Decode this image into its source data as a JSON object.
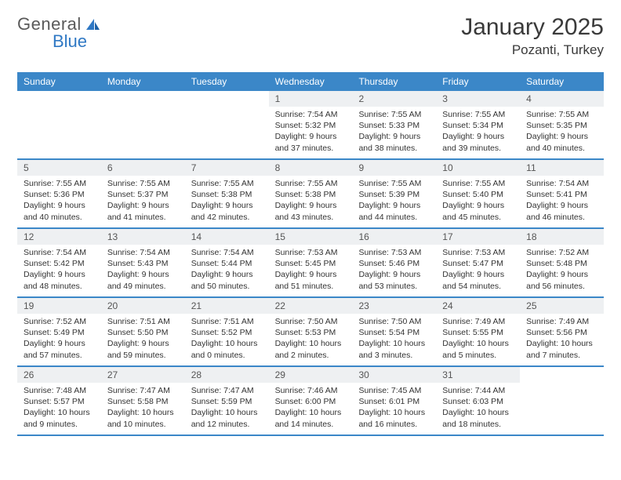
{
  "logo": {
    "word1": "General",
    "word2": "Blue"
  },
  "title": "January 2025",
  "location": "Pozanti, Turkey",
  "colors": {
    "header_bar": "#3b87c8",
    "day_num_bg": "#eef0f2",
    "week_border": "#3b87c8",
    "logo_gray": "#5a5a5a",
    "logo_blue": "#2f78c4",
    "text": "#333333",
    "background": "#ffffff"
  },
  "dow": [
    "Sunday",
    "Monday",
    "Tuesday",
    "Wednesday",
    "Thursday",
    "Friday",
    "Saturday"
  ],
  "weeks": [
    [
      {
        "n": "",
        "sr": "",
        "ss": "",
        "dl": ""
      },
      {
        "n": "",
        "sr": "",
        "ss": "",
        "dl": ""
      },
      {
        "n": "",
        "sr": "",
        "ss": "",
        "dl": ""
      },
      {
        "n": "1",
        "sr": "Sunrise: 7:54 AM",
        "ss": "Sunset: 5:32 PM",
        "dl": "Daylight: 9 hours and 37 minutes."
      },
      {
        "n": "2",
        "sr": "Sunrise: 7:55 AM",
        "ss": "Sunset: 5:33 PM",
        "dl": "Daylight: 9 hours and 38 minutes."
      },
      {
        "n": "3",
        "sr": "Sunrise: 7:55 AM",
        "ss": "Sunset: 5:34 PM",
        "dl": "Daylight: 9 hours and 39 minutes."
      },
      {
        "n": "4",
        "sr": "Sunrise: 7:55 AM",
        "ss": "Sunset: 5:35 PM",
        "dl": "Daylight: 9 hours and 40 minutes."
      }
    ],
    [
      {
        "n": "5",
        "sr": "Sunrise: 7:55 AM",
        "ss": "Sunset: 5:36 PM",
        "dl": "Daylight: 9 hours and 40 minutes."
      },
      {
        "n": "6",
        "sr": "Sunrise: 7:55 AM",
        "ss": "Sunset: 5:37 PM",
        "dl": "Daylight: 9 hours and 41 minutes."
      },
      {
        "n": "7",
        "sr": "Sunrise: 7:55 AM",
        "ss": "Sunset: 5:38 PM",
        "dl": "Daylight: 9 hours and 42 minutes."
      },
      {
        "n": "8",
        "sr": "Sunrise: 7:55 AM",
        "ss": "Sunset: 5:38 PM",
        "dl": "Daylight: 9 hours and 43 minutes."
      },
      {
        "n": "9",
        "sr": "Sunrise: 7:55 AM",
        "ss": "Sunset: 5:39 PM",
        "dl": "Daylight: 9 hours and 44 minutes."
      },
      {
        "n": "10",
        "sr": "Sunrise: 7:55 AM",
        "ss": "Sunset: 5:40 PM",
        "dl": "Daylight: 9 hours and 45 minutes."
      },
      {
        "n": "11",
        "sr": "Sunrise: 7:54 AM",
        "ss": "Sunset: 5:41 PM",
        "dl": "Daylight: 9 hours and 46 minutes."
      }
    ],
    [
      {
        "n": "12",
        "sr": "Sunrise: 7:54 AM",
        "ss": "Sunset: 5:42 PM",
        "dl": "Daylight: 9 hours and 48 minutes."
      },
      {
        "n": "13",
        "sr": "Sunrise: 7:54 AM",
        "ss": "Sunset: 5:43 PM",
        "dl": "Daylight: 9 hours and 49 minutes."
      },
      {
        "n": "14",
        "sr": "Sunrise: 7:54 AM",
        "ss": "Sunset: 5:44 PM",
        "dl": "Daylight: 9 hours and 50 minutes."
      },
      {
        "n": "15",
        "sr": "Sunrise: 7:53 AM",
        "ss": "Sunset: 5:45 PM",
        "dl": "Daylight: 9 hours and 51 minutes."
      },
      {
        "n": "16",
        "sr": "Sunrise: 7:53 AM",
        "ss": "Sunset: 5:46 PM",
        "dl": "Daylight: 9 hours and 53 minutes."
      },
      {
        "n": "17",
        "sr": "Sunrise: 7:53 AM",
        "ss": "Sunset: 5:47 PM",
        "dl": "Daylight: 9 hours and 54 minutes."
      },
      {
        "n": "18",
        "sr": "Sunrise: 7:52 AM",
        "ss": "Sunset: 5:48 PM",
        "dl": "Daylight: 9 hours and 56 minutes."
      }
    ],
    [
      {
        "n": "19",
        "sr": "Sunrise: 7:52 AM",
        "ss": "Sunset: 5:49 PM",
        "dl": "Daylight: 9 hours and 57 minutes."
      },
      {
        "n": "20",
        "sr": "Sunrise: 7:51 AM",
        "ss": "Sunset: 5:50 PM",
        "dl": "Daylight: 9 hours and 59 minutes."
      },
      {
        "n": "21",
        "sr": "Sunrise: 7:51 AM",
        "ss": "Sunset: 5:52 PM",
        "dl": "Daylight: 10 hours and 0 minutes."
      },
      {
        "n": "22",
        "sr": "Sunrise: 7:50 AM",
        "ss": "Sunset: 5:53 PM",
        "dl": "Daylight: 10 hours and 2 minutes."
      },
      {
        "n": "23",
        "sr": "Sunrise: 7:50 AM",
        "ss": "Sunset: 5:54 PM",
        "dl": "Daylight: 10 hours and 3 minutes."
      },
      {
        "n": "24",
        "sr": "Sunrise: 7:49 AM",
        "ss": "Sunset: 5:55 PM",
        "dl": "Daylight: 10 hours and 5 minutes."
      },
      {
        "n": "25",
        "sr": "Sunrise: 7:49 AM",
        "ss": "Sunset: 5:56 PM",
        "dl": "Daylight: 10 hours and 7 minutes."
      }
    ],
    [
      {
        "n": "26",
        "sr": "Sunrise: 7:48 AM",
        "ss": "Sunset: 5:57 PM",
        "dl": "Daylight: 10 hours and 9 minutes."
      },
      {
        "n": "27",
        "sr": "Sunrise: 7:47 AM",
        "ss": "Sunset: 5:58 PM",
        "dl": "Daylight: 10 hours and 10 minutes."
      },
      {
        "n": "28",
        "sr": "Sunrise: 7:47 AM",
        "ss": "Sunset: 5:59 PM",
        "dl": "Daylight: 10 hours and 12 minutes."
      },
      {
        "n": "29",
        "sr": "Sunrise: 7:46 AM",
        "ss": "Sunset: 6:00 PM",
        "dl": "Daylight: 10 hours and 14 minutes."
      },
      {
        "n": "30",
        "sr": "Sunrise: 7:45 AM",
        "ss": "Sunset: 6:01 PM",
        "dl": "Daylight: 10 hours and 16 minutes."
      },
      {
        "n": "31",
        "sr": "Sunrise: 7:44 AM",
        "ss": "Sunset: 6:03 PM",
        "dl": "Daylight: 10 hours and 18 minutes."
      },
      {
        "n": "",
        "sr": "",
        "ss": "",
        "dl": ""
      }
    ]
  ]
}
